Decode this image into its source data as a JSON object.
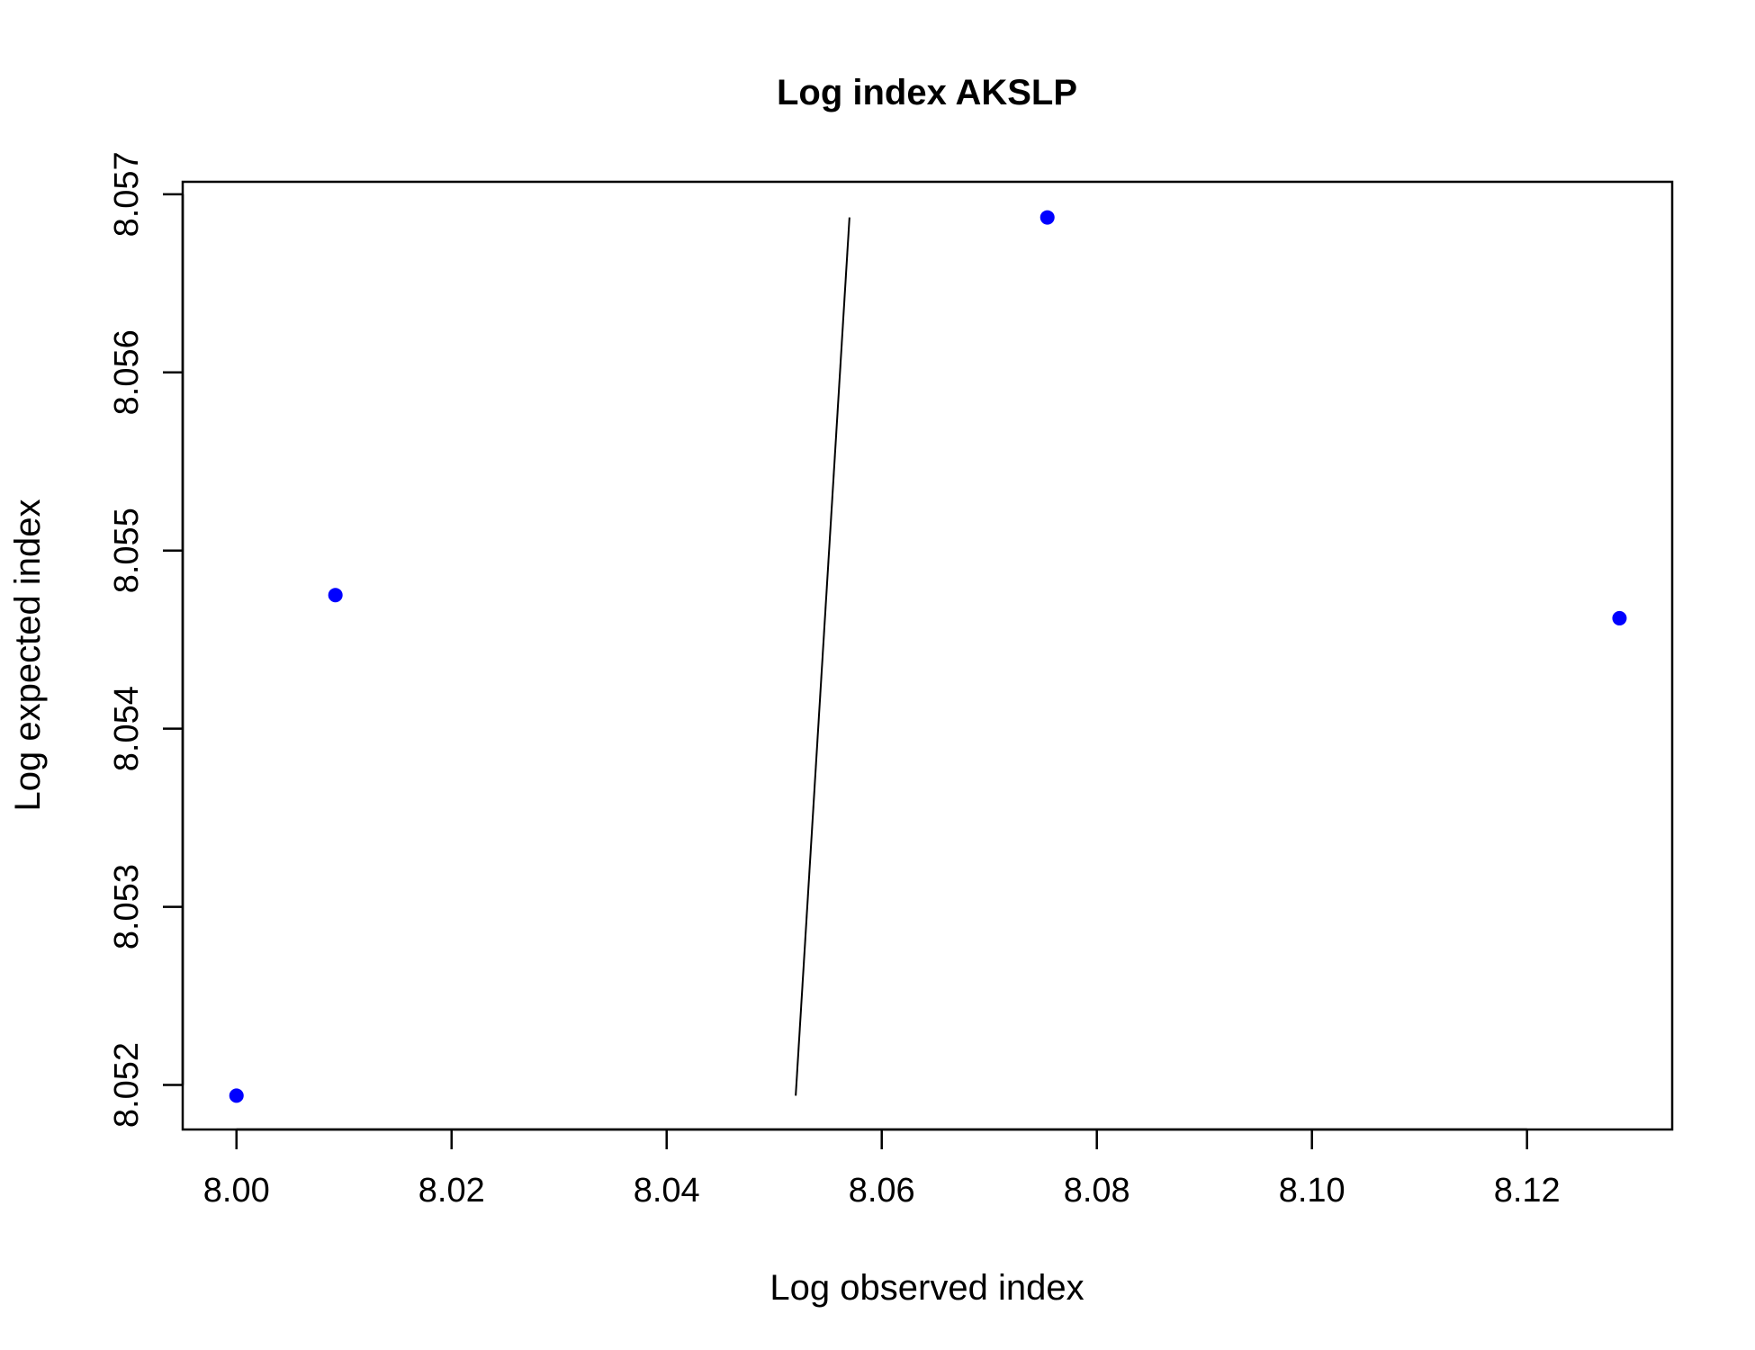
{
  "chart_data": {
    "type": "scatter",
    "title": "Log index AKSLP",
    "xlabel": "Log observed index",
    "ylabel": "Log expected index",
    "xlim": [
      7.995,
      8.1335
    ],
    "ylim": [
      8.05175,
      8.05707
    ],
    "x_ticks": [
      8.0,
      8.02,
      8.04,
      8.06,
      8.08,
      8.1,
      8.12
    ],
    "x_tick_labels": [
      "8.00",
      "8.02",
      "8.04",
      "8.06",
      "8.08",
      "8.10",
      "8.12"
    ],
    "y_ticks": [
      8.052,
      8.053,
      8.054,
      8.055,
      8.056,
      8.057
    ],
    "y_tick_labels": [
      "8.052",
      "8.053",
      "8.054",
      "8.055",
      "8.056",
      "8.057"
    ],
    "grid": false,
    "point_color": "#0000ff",
    "line_color": "#000000",
    "points": [
      {
        "x": 8.0,
        "y": 8.05194
      },
      {
        "x": 8.0092,
        "y": 8.05475
      },
      {
        "x": 8.0754,
        "y": 8.05687
      },
      {
        "x": 8.1286,
        "y": 8.05462
      }
    ],
    "line": [
      {
        "x": 8.052,
        "y": 8.05194
      },
      {
        "x": 8.057,
        "y": 8.05687
      }
    ]
  }
}
